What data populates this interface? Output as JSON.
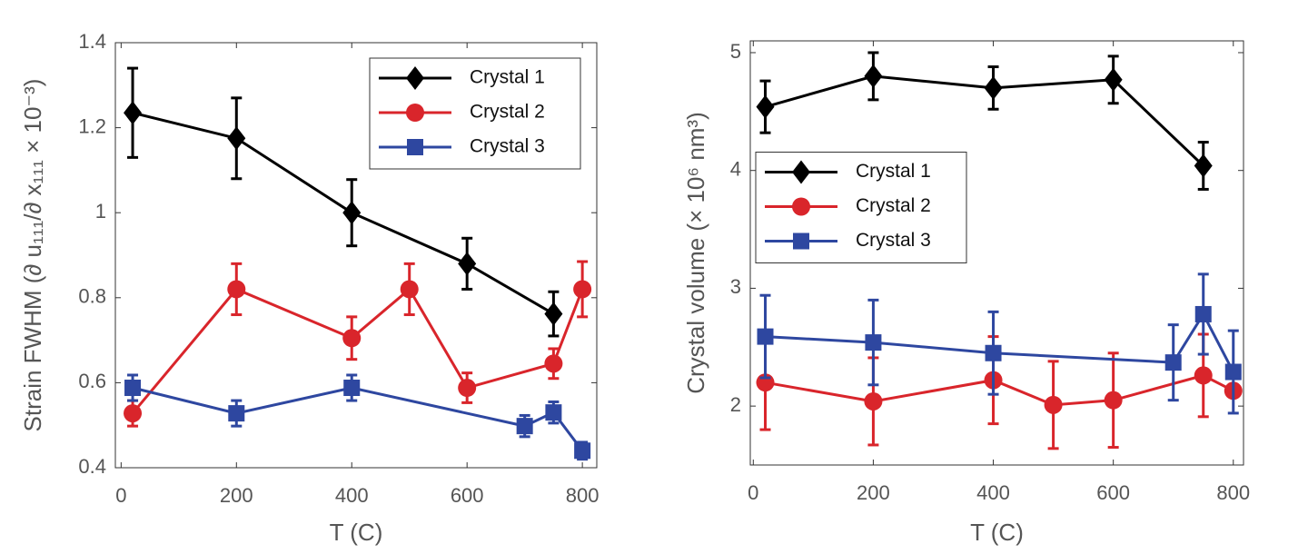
{
  "chart_data": [
    {
      "type": "line",
      "xlabel": "T (C)",
      "ylabel": "Strain FWHM (∂ u₁₁₁/∂ x₁₁₁ × 10⁻³)",
      "xlim": [
        -10,
        825
      ],
      "xticks": [
        0,
        200,
        400,
        600,
        800
      ],
      "ylim": [
        0.4,
        1.4
      ],
      "yticks": [
        0.4,
        0.6,
        0.8,
        1,
        1.2,
        1.4
      ],
      "legend": "upper right",
      "series": [
        {
          "name": "Crystal 1",
          "color": "#000000",
          "marker": "diamond",
          "x": [
            20,
            200,
            400,
            600,
            750
          ],
          "values": [
            1.235,
            1.175,
            1.0,
            0.88,
            0.762
          ],
          "errors": [
            0.105,
            0.095,
            0.078,
            0.06,
            0.052
          ]
        },
        {
          "name": "Crystal 2",
          "color": "#d9252b",
          "marker": "circle",
          "x": [
            20,
            200,
            400,
            500,
            600,
            750,
            800
          ],
          "values": [
            0.528,
            0.82,
            0.705,
            0.82,
            0.588,
            0.645,
            0.82
          ],
          "errors": [
            0.03,
            0.06,
            0.05,
            0.06,
            0.035,
            0.035,
            0.065
          ]
        },
        {
          "name": "Crystal 3",
          "color": "#2e47a0",
          "marker": "square",
          "x": [
            20,
            200,
            400,
            700,
            750,
            800
          ],
          "values": [
            0.588,
            0.528,
            0.588,
            0.498,
            0.53,
            0.44
          ],
          "errors": [
            0.03,
            0.03,
            0.03,
            0.025,
            0.025,
            0.02
          ]
        }
      ]
    },
    {
      "type": "line",
      "xlabel": "T (C)",
      "ylabel": "Crystal volume (× 10⁶ nm³)",
      "xlim": [
        -5,
        817
      ],
      "xticks": [
        0,
        200,
        400,
        600,
        800
      ],
      "ylim": [
        1.5,
        5.1
      ],
      "yticks": [
        2,
        3,
        4,
        5
      ],
      "legend": "center left",
      "series": [
        {
          "name": "Crystal 1",
          "color": "#000000",
          "marker": "diamond",
          "x": [
            20,
            200,
            400,
            600,
            750
          ],
          "values": [
            4.54,
            4.8,
            4.7,
            4.77,
            4.04
          ],
          "errors": [
            0.22,
            0.2,
            0.18,
            0.2,
            0.2
          ]
        },
        {
          "name": "Crystal 2",
          "color": "#d9252b",
          "marker": "circle",
          "x": [
            20,
            200,
            400,
            500,
            600,
            750,
            800
          ],
          "values": [
            2.2,
            2.04,
            2.22,
            2.01,
            2.05,
            2.26,
            2.13
          ],
          "errors": [
            0.4,
            0.37,
            0.37,
            0.37,
            0.4,
            0.35,
            0
          ]
        },
        {
          "name": "Crystal 3",
          "color": "#2e47a0",
          "marker": "square",
          "x": [
            20,
            200,
            400,
            700,
            750,
            800
          ],
          "values": [
            2.59,
            2.54,
            2.45,
            2.37,
            2.78,
            2.29
          ],
          "errors": [
            0.35,
            0.36,
            0.35,
            0.32,
            0.34,
            0.35
          ]
        }
      ]
    }
  ]
}
